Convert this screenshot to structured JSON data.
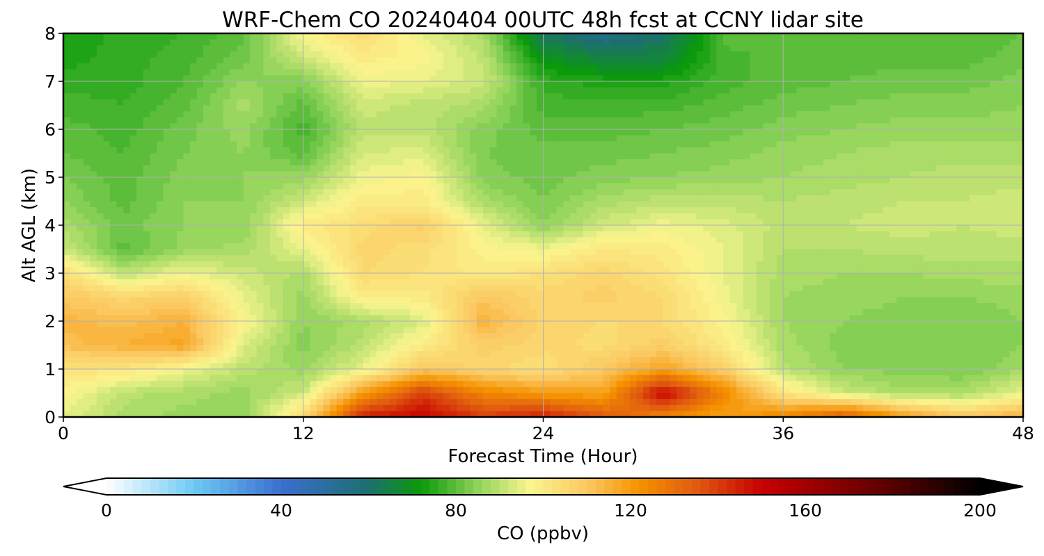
{
  "chart_data": {
    "type": "heatmap",
    "title": "WRF-Chem CO  20240404 00UTC 48h fcst at CCNY lidar site",
    "xlabel": "Forecast Time (Hour)",
    "ylabel": "Alt AGL (km)",
    "xlim": [
      0,
      48
    ],
    "ylim": [
      0,
      8
    ],
    "x_ticks": [
      0,
      12,
      24,
      36,
      48
    ],
    "y_ticks": [
      0,
      1,
      2,
      3,
      4,
      5,
      6,
      7,
      8
    ],
    "grid": true,
    "x": [
      0,
      3,
      6,
      9,
      12,
      15,
      18,
      21,
      24,
      27,
      30,
      33,
      36,
      39,
      42,
      45,
      48
    ],
    "y": [
      0,
      0.5,
      1,
      1.5,
      2,
      2.5,
      3,
      3.5,
      4,
      4.5,
      5,
      5.5,
      6,
      6.5,
      7,
      7.5,
      8
    ],
    "values": [
      [
        95,
        88,
        86,
        86,
        105,
        145,
        150,
        140,
        145,
        135,
        125,
        118,
        125,
        135,
        120,
        110,
        115
      ],
      [
        98,
        90,
        88,
        86,
        92,
        120,
        140,
        125,
        120,
        118,
        150,
        125,
        102,
        92,
        88,
        88,
        95
      ],
      [
        102,
        102,
        96,
        90,
        86,
        95,
        110,
        106,
        103,
        110,
        118,
        108,
        90,
        85,
        84,
        83,
        87
      ],
      [
        112,
        115,
        118,
        94,
        84,
        90,
        100,
        108,
        106,
        104,
        108,
        100,
        88,
        84,
        83,
        83,
        85
      ],
      [
        114,
        112,
        115,
        98,
        85,
        88,
        93,
        115,
        106,
        105,
        105,
        98,
        87,
        85,
        84,
        83,
        85
      ],
      [
        110,
        106,
        108,
        95,
        86,
        100,
        100,
        110,
        106,
        108,
        105,
        96,
        87,
        86,
        85,
        85,
        86
      ],
      [
        104,
        90,
        96,
        92,
        88,
        105,
        103,
        100,
        103,
        106,
        102,
        95,
        88,
        87,
        87,
        88,
        88
      ],
      [
        92,
        80,
        86,
        88,
        95,
        106,
        104,
        98,
        96,
        101,
        100,
        95,
        89,
        89,
        90,
        90,
        90
      ],
      [
        88,
        82,
        85,
        85,
        100,
        104,
        108,
        95,
        85,
        92,
        96,
        94,
        90,
        91,
        92,
        91,
        92
      ],
      [
        85,
        80,
        85,
        85,
        92,
        100,
        100,
        88,
        83,
        88,
        90,
        90,
        89,
        90,
        91,
        91,
        92
      ],
      [
        83,
        80,
        84,
        85,
        86,
        96,
        98,
        84,
        82,
        84,
        85,
        86,
        87,
        88,
        89,
        90,
        90
      ],
      [
        81,
        79,
        83,
        85,
        80,
        93,
        94,
        83,
        82,
        82,
        83,
        84,
        86,
        87,
        88,
        88,
        88
      ],
      [
        80,
        78,
        82,
        86,
        78,
        90,
        90,
        84,
        80,
        80,
        81,
        82,
        84,
        85,
        86,
        86,
        86
      ],
      [
        78,
        77,
        80,
        88,
        80,
        92,
        90,
        88,
        78,
        78,
        78,
        80,
        82,
        83,
        84,
        84,
        85
      ],
      [
        76,
        76,
        79,
        85,
        84,
        96,
        95,
        92,
        76,
        74,
        74,
        78,
        80,
        81,
        82,
        82,
        84
      ],
      [
        74,
        76,
        78,
        82,
        92,
        100,
        98,
        90,
        70,
        65,
        66,
        78,
        80,
        80,
        80,
        80,
        82
      ],
      [
        73,
        76,
        77,
        80,
        98,
        104,
        95,
        88,
        62,
        55,
        60,
        80,
        81,
        80,
        79,
        79,
        81
      ]
    ],
    "colorbar": {
      "label": "CO  (ppbv)",
      "min": 0,
      "max": 200,
      "ticks": [
        0,
        40,
        80,
        120,
        160,
        200
      ],
      "extend": "both",
      "colors": [
        {
          "v": 0,
          "c": "#ffffff"
        },
        {
          "v": 20,
          "c": "#6ecaf5"
        },
        {
          "v": 40,
          "c": "#3a6ecf"
        },
        {
          "v": 60,
          "c": "#1d6f6f"
        },
        {
          "v": 72,
          "c": "#0a9a0a"
        },
        {
          "v": 85,
          "c": "#8fd35a"
        },
        {
          "v": 97,
          "c": "#fbf58f"
        },
        {
          "v": 110,
          "c": "#fbc861"
        },
        {
          "v": 122,
          "c": "#f59200"
        },
        {
          "v": 135,
          "c": "#e05b10"
        },
        {
          "v": 150,
          "c": "#c80000"
        },
        {
          "v": 175,
          "c": "#6b0000"
        },
        {
          "v": 200,
          "c": "#000000"
        }
      ]
    }
  }
}
